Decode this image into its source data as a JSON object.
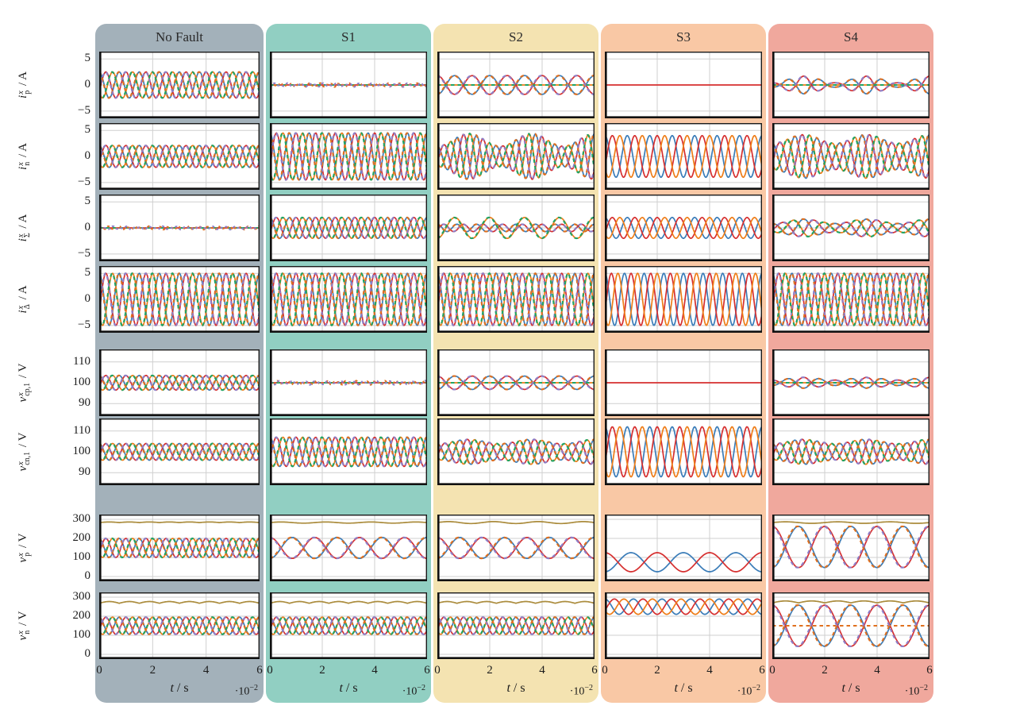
{
  "chart_data": {
    "type": "line",
    "description": "Grid of 8 signal rows by 5 operating-condition columns showing three-phase converter waveforms versus time",
    "columns": [
      {
        "key": "nofault",
        "label": "No Fault",
        "band_color": "#a3b1ba"
      },
      {
        "key": "s1",
        "label": "S1",
        "band_color": "#91cfc2"
      },
      {
        "key": "s2",
        "label": "S2",
        "band_color": "#f4e3b1"
      },
      {
        "key": "s3",
        "label": "S3",
        "band_color": "#f9c8a5"
      },
      {
        "key": "s4",
        "label": "S4",
        "band_color": "#f0a89d"
      }
    ],
    "x_axis": {
      "var": "t",
      "unit": "s",
      "ticks": [
        0,
        2,
        4,
        6
      ],
      "range": [
        0,
        6
      ],
      "scale_base": "·10",
      "scale_exp": "−2"
    },
    "rows": [
      {
        "key": "ip",
        "sym": "i",
        "sub": "p",
        "sup": "x",
        "unit": "A",
        "ylim": [
          -6.4,
          6.4
        ],
        "yticks": [
          5,
          0,
          -5
        ]
      },
      {
        "key": "in",
        "sym": "i",
        "sub": "n",
        "sup": "x",
        "unit": "A",
        "ylim": [
          -6.4,
          6.4
        ],
        "yticks": [
          5,
          0,
          -5
        ]
      },
      {
        "key": "isum",
        "sym": "i",
        "sub": "Σ",
        "sup": "x",
        "unit": "A",
        "ylim": [
          -6.4,
          6.4
        ],
        "yticks": [
          5,
          0,
          -5
        ]
      },
      {
        "key": "idelta",
        "sym": "i",
        "sub": "Δ",
        "sup": "x",
        "unit": "A",
        "ylim": [
          -6.4,
          6.4
        ],
        "yticks": [
          5,
          0,
          -5
        ]
      },
      {
        "key": "vcp1",
        "sym": "v",
        "sub": "cp,1",
        "sup": "x",
        "unit": "V",
        "ylim": [
          84,
          116
        ],
        "yticks": [
          110,
          100,
          90
        ]
      },
      {
        "key": "vcn1",
        "sym": "v",
        "sub": "cn,1",
        "sup": "x",
        "unit": "V",
        "ylim": [
          84,
          116
        ],
        "yticks": [
          110,
          100,
          90
        ]
      },
      {
        "key": "vp",
        "sym": "v",
        "sub": "p",
        "sup": "x",
        "unit": "V",
        "ylim": [
          -25,
          325
        ],
        "yticks": [
          300,
          200,
          100,
          0
        ]
      },
      {
        "key": "vn",
        "sym": "v",
        "sub": "n",
        "sup": "x",
        "unit": "V",
        "ylim": [
          -25,
          325
        ],
        "yticks": [
          300,
          200,
          100,
          0
        ]
      }
    ],
    "palette": {
      "blue": "#3a7cb8",
      "red": "#d62f2f",
      "orange": "#ee7d18",
      "green": "#1ea566",
      "purple": "#8e7fc8",
      "orange2": "#e0701f",
      "brown": "#ab8c3d"
    },
    "grid": {
      "x_gridlines": [
        2,
        4
      ],
      "color": "#cfcfcf"
    },
    "cells": [
      [
        [
          {
            "kind": "tp",
            "a": 2.5,
            "o": 0,
            "f": 8
          }
        ],
        [
          {
            "kind": "flat",
            "o": 0,
            "lines": [
              {
                "c": "red",
                "d": false
              },
              {
                "c": "green",
                "d": true
              }
            ]
          },
          {
            "kind": "noisy",
            "o": 0,
            "lines": [
              {
                "c": "orange2",
                "d": true,
                "a": 0.35,
                "f": 16,
                "s": 1
              },
              {
                "c": "purple",
                "d": true,
                "a": 0.35,
                "f": 13,
                "s": 5
              }
            ]
          }
        ],
        [
          {
            "kind": "flat",
            "o": 0,
            "lines": [
              {
                "c": "orange",
                "d": false
              },
              {
                "c": "green",
                "d": true
              }
            ]
          },
          {
            "kind": "pair2",
            "a": 1.8,
            "o": 0,
            "f": 4.5
          }
        ],
        [
          {
            "kind": "flat",
            "o": 0,
            "lines": [
              {
                "c": "red",
                "d": false
              }
            ]
          }
        ],
        [
          {
            "kind": "flat",
            "o": 0,
            "lines": [
              {
                "c": "orange",
                "d": false
              },
              {
                "c": "green",
                "d": true
              }
            ]
          },
          {
            "kind": "pair2",
            "a": 1.7,
            "o": 0,
            "f": 5,
            "env": {
              "d": 0.75,
              "n": 2.5
            }
          }
        ]
      ],
      [
        [
          {
            "kind": "tp",
            "a": 2.1,
            "o": 0,
            "f": 8
          }
        ],
        [
          {
            "kind": "tp",
            "a": 4.5,
            "o": 0,
            "f": 8
          }
        ],
        [
          {
            "kind": "tp",
            "a": 4.4,
            "o": 0,
            "f": 8,
            "env": {
              "d": 0.55,
              "n": 2.5
            }
          }
        ],
        [
          {
            "kind": "tp3",
            "a": 4.0,
            "o": 0,
            "f": 7
          }
        ],
        [
          {
            "kind": "tp",
            "a": 4.2,
            "o": 0,
            "f": 7,
            "env": {
              "d": 0.4,
              "n": 2.5
            }
          }
        ]
      ],
      [
        [
          {
            "kind": "flat",
            "o": 0,
            "lines": [
              {
                "c": "red",
                "d": false
              },
              {
                "c": "green",
                "d": true
              }
            ]
          },
          {
            "kind": "noisy",
            "o": 0,
            "lines": [
              {
                "c": "orange2",
                "d": true,
                "a": 0.3,
                "f": 16,
                "s": 2
              },
              {
                "c": "purple",
                "d": true,
                "a": 0.3,
                "f": 13,
                "s": 7
              }
            ]
          }
        ],
        [
          {
            "kind": "tp",
            "a": 2.0,
            "o": 0,
            "f": 8
          }
        ],
        [
          {
            "kind": "wave",
            "c": "blue",
            "d": false,
            "a": 0.7,
            "o": 0,
            "f": 8,
            "ph": 90
          },
          {
            "kind": "wave",
            "c": "red",
            "d": false,
            "a": 0.7,
            "o": 0,
            "f": 8,
            "ph": -30
          },
          {
            "kind": "wave",
            "c": "purple",
            "d": true,
            "a": 0.7,
            "o": 0,
            "f": 8,
            "ph": -23
          },
          {
            "kind": "wave",
            "c": "orange2",
            "d": true,
            "a": 0.7,
            "o": 0,
            "f": 8,
            "ph": 97
          },
          {
            "kind": "wave",
            "c": "orange",
            "d": false,
            "a": 2.0,
            "o": 0,
            "f": 4.5,
            "ph": -90
          },
          {
            "kind": "wave",
            "c": "green",
            "d": true,
            "a": 2.0,
            "o": 0,
            "f": 4.5,
            "ph": -83
          }
        ],
        [
          {
            "kind": "tp3",
            "a": 2.0,
            "o": 0,
            "f": 7
          }
        ],
        [
          {
            "kind": "tp",
            "a": 1.7,
            "o": 0,
            "f": 5,
            "env": {
              "d": 0.5,
              "n": 2.5
            }
          }
        ]
      ],
      [
        [
          {
            "kind": "tp",
            "a": 5,
            "o": 0,
            "f": 8
          }
        ],
        [
          {
            "kind": "tp",
            "a": 5,
            "o": 0,
            "f": 8
          }
        ],
        [
          {
            "kind": "tp",
            "a": 5,
            "o": 0,
            "f": 8
          }
        ],
        [
          {
            "kind": "tp3",
            "a": 5,
            "o": 0,
            "f": 8
          }
        ],
        [
          {
            "kind": "tp",
            "a": 5,
            "o": 0,
            "f": 8
          }
        ]
      ],
      [
        [
          {
            "kind": "tp",
            "a": 3.5,
            "o": 100,
            "f": 8
          }
        ],
        [
          {
            "kind": "flat",
            "o": 100,
            "lines": [
              {
                "c": "red",
                "d": false
              },
              {
                "c": "green",
                "d": true
              }
            ]
          },
          {
            "kind": "noisy",
            "o": 100,
            "lines": [
              {
                "c": "orange2",
                "d": true,
                "a": 0.9,
                "f": 16,
                "s": 3
              },
              {
                "c": "purple",
                "d": true,
                "a": 0.9,
                "f": 13,
                "s": 9
              }
            ]
          }
        ],
        [
          {
            "kind": "flat",
            "o": 100,
            "lines": [
              {
                "c": "orange",
                "d": false
              },
              {
                "c": "green",
                "d": true
              }
            ]
          },
          {
            "kind": "pair2",
            "a": 3.2,
            "o": 100,
            "f": 4.5
          }
        ],
        [
          {
            "kind": "flat",
            "o": 100,
            "lines": [
              {
                "c": "red",
                "d": false
              }
            ]
          }
        ],
        [
          {
            "kind": "flat",
            "o": 100,
            "lines": [
              {
                "c": "orange",
                "d": false
              },
              {
                "c": "green",
                "d": true
              }
            ]
          },
          {
            "kind": "pair2",
            "a": 2.6,
            "o": 100,
            "f": 5,
            "env": {
              "d": 0.5,
              "n": 2.5
            }
          }
        ]
      ],
      [
        [
          {
            "kind": "tp",
            "a": 4,
            "o": 100,
            "f": 8
          }
        ],
        [
          {
            "kind": "tp",
            "a": 7,
            "o": 100,
            "f": 8
          }
        ],
        [
          {
            "kind": "tp",
            "a": 6,
            "o": 100,
            "f": 7,
            "env": {
              "d": 0.35,
              "n": 2.5
            }
          }
        ],
        [
          {
            "kind": "tp3",
            "a": 12,
            "o": 100,
            "f": 7
          }
        ],
        [
          {
            "kind": "tp",
            "a": 6,
            "o": 100,
            "f": 7,
            "env": {
              "d": 0.35,
              "n": 2.5
            }
          }
        ]
      ],
      [
        [
          {
            "kind": "ripple",
            "c": "brown",
            "o": 283,
            "r": 3,
            "rb": 8,
            "abs": true
          },
          {
            "kind": "tp",
            "a": 50,
            "o": 150,
            "f": 8
          }
        ],
        [
          {
            "kind": "ripple",
            "c": "brown",
            "o": 283,
            "r": 3,
            "rb": 3.5,
            "abs": false
          },
          {
            "kind": "pair2",
            "a": 55,
            "o": 150,
            "f": 3.5
          }
        ],
        [
          {
            "kind": "ripple",
            "c": "brown",
            "o": 283,
            "r": 5,
            "rb": 3.5,
            "abs": false
          },
          {
            "kind": "pair2",
            "a": 55,
            "o": 150,
            "f": 3.5
          }
        ],
        [
          {
            "kind": "wave",
            "c": "blue",
            "d": false,
            "a": 50,
            "o": 75,
            "f": 3,
            "ph": -90
          },
          {
            "kind": "wave",
            "c": "red",
            "d": false,
            "a": 50,
            "o": 75,
            "f": 3,
            "ph": 90
          }
        ],
        [
          {
            "kind": "ripple",
            "c": "brown",
            "o": 283,
            "r": 4,
            "rb": 3,
            "abs": false
          },
          {
            "kind": "pair2",
            "a": 108,
            "o": 155,
            "f": 3
          }
        ]
      ],
      [
        [
          {
            "kind": "ripple",
            "c": "brown",
            "o": 268,
            "r": 9,
            "rb": 8,
            "abs": true
          },
          {
            "kind": "tp",
            "a": 45,
            "o": 150,
            "f": 8
          }
        ],
        [
          {
            "kind": "ripple",
            "c": "brown",
            "o": 268,
            "r": 9,
            "rb": 8,
            "abs": true
          },
          {
            "kind": "tp",
            "a": 45,
            "o": 150,
            "f": 8
          }
        ],
        [
          {
            "kind": "ripple",
            "c": "brown",
            "o": 268,
            "r": 9,
            "rb": 8,
            "abs": true
          },
          {
            "kind": "tp",
            "a": 45,
            "o": 150,
            "f": 8
          }
        ],
        [
          {
            "kind": "tp3",
            "a": 40,
            "o": 250,
            "f": 5.5
          }
        ],
        [
          {
            "kind": "ripple",
            "c": "brown",
            "o": 270,
            "r": 10,
            "rb": 6,
            "abs": true
          },
          {
            "kind": "flat",
            "o": 150,
            "lines": [
              {
                "c": "green",
                "d": true
              },
              {
                "c": "orange2",
                "d": true
              }
            ]
          },
          {
            "kind": "pair2",
            "a": 108,
            "o": 150,
            "f": 3
          }
        ]
      ]
    ]
  }
}
